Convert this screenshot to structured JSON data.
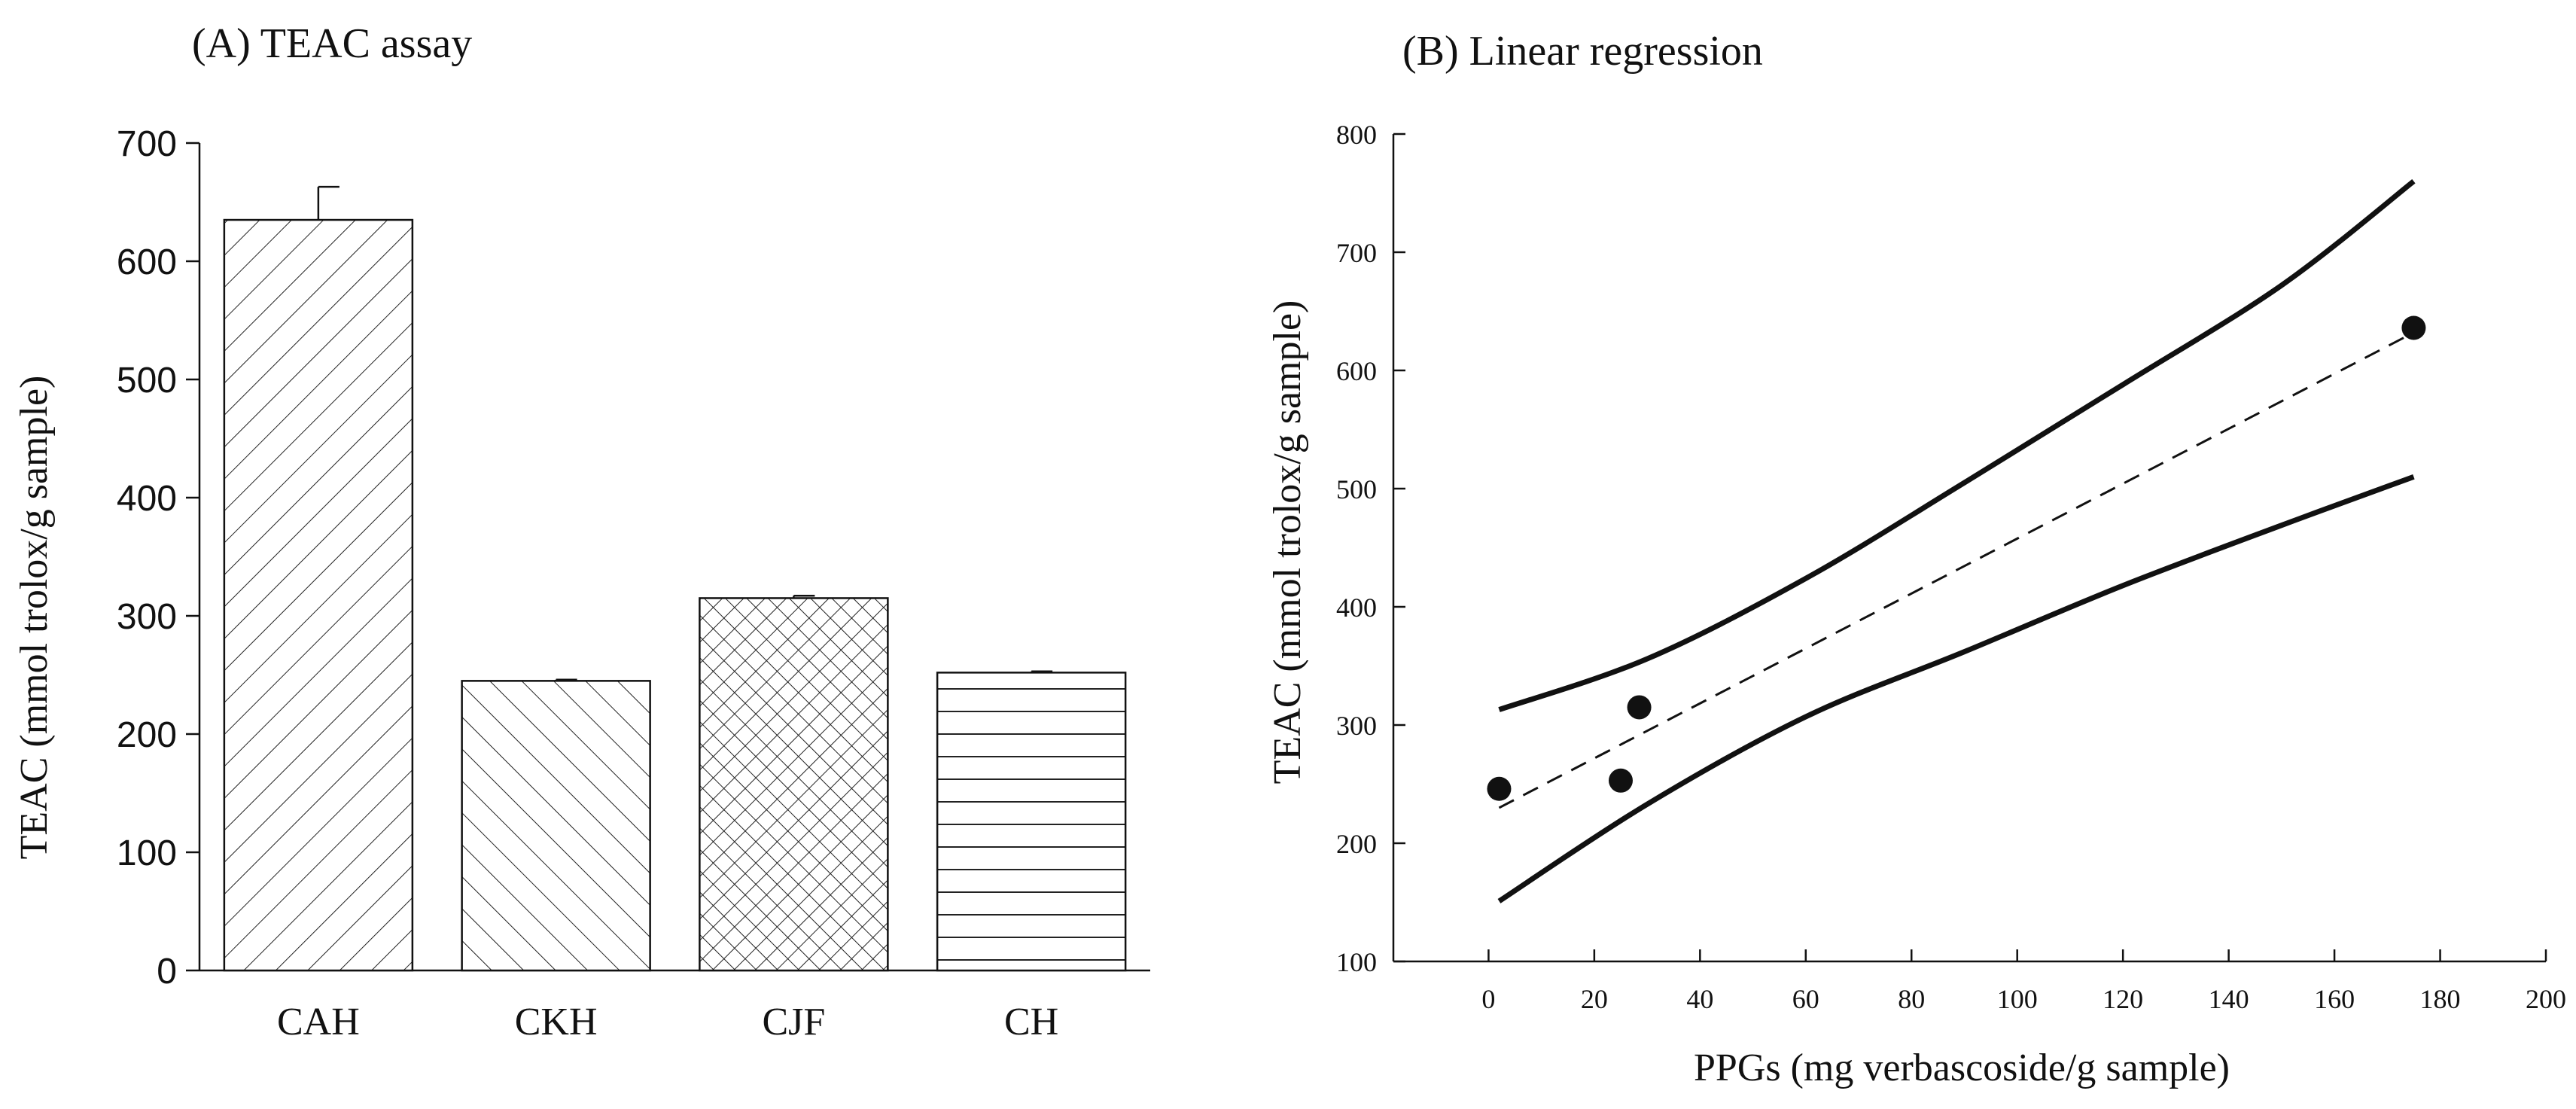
{
  "chart_data": [
    {
      "id": "A",
      "type": "bar",
      "title": "(A) TEAC assay",
      "xlabel": "",
      "ylabel": "TEAC (mmol trolox/g sample)",
      "ylim": [
        0,
        700
      ],
      "yticks": [
        0,
        100,
        200,
        300,
        400,
        500,
        600,
        700
      ],
      "categories": [
        "CAH",
        "CKH",
        "CJF",
        "CH"
      ],
      "values": [
        635,
        245,
        315,
        252
      ],
      "errors": [
        28,
        1,
        2,
        1
      ],
      "patterns": [
        "diag-right",
        "diag-left",
        "crosshatch",
        "horizontal"
      ],
      "grid": false,
      "legend": "none"
    },
    {
      "id": "B",
      "type": "scatter",
      "title": "(B) Linear regression",
      "xlabel": "PPGs (mg verbascoside/g sample)",
      "ylabel": "TEAC (mmol trolox/g sample)",
      "xlim": [
        -18,
        200
      ],
      "ylim": [
        100,
        800
      ],
      "xticks": [
        0,
        20,
        40,
        60,
        80,
        100,
        120,
        140,
        160,
        180,
        200
      ],
      "yticks": [
        100,
        200,
        300,
        400,
        500,
        600,
        700,
        800
      ],
      "points": [
        {
          "x": 2,
          "y": 246
        },
        {
          "x": 25,
          "y": 253
        },
        {
          "x": 28.5,
          "y": 315
        },
        {
          "x": 175,
          "y": 636
        }
      ],
      "regression": {
        "style": "dashed",
        "x0": 2,
        "y0": 230,
        "x1": 175,
        "y1": 632
      },
      "confidence_upper": [
        [
          2,
          313
        ],
        [
          30,
          356
        ],
        [
          60,
          424
        ],
        [
          90,
          505
        ],
        [
          120,
          588
        ],
        [
          150,
          672
        ],
        [
          175,
          760
        ]
      ],
      "confidence_lower": [
        [
          2,
          151
        ],
        [
          30,
          233
        ],
        [
          60,
          307
        ],
        [
          90,
          362
        ],
        [
          120,
          418
        ],
        [
          150,
          469
        ],
        [
          175,
          510
        ]
      ],
      "grid": false,
      "legend": "none"
    }
  ]
}
